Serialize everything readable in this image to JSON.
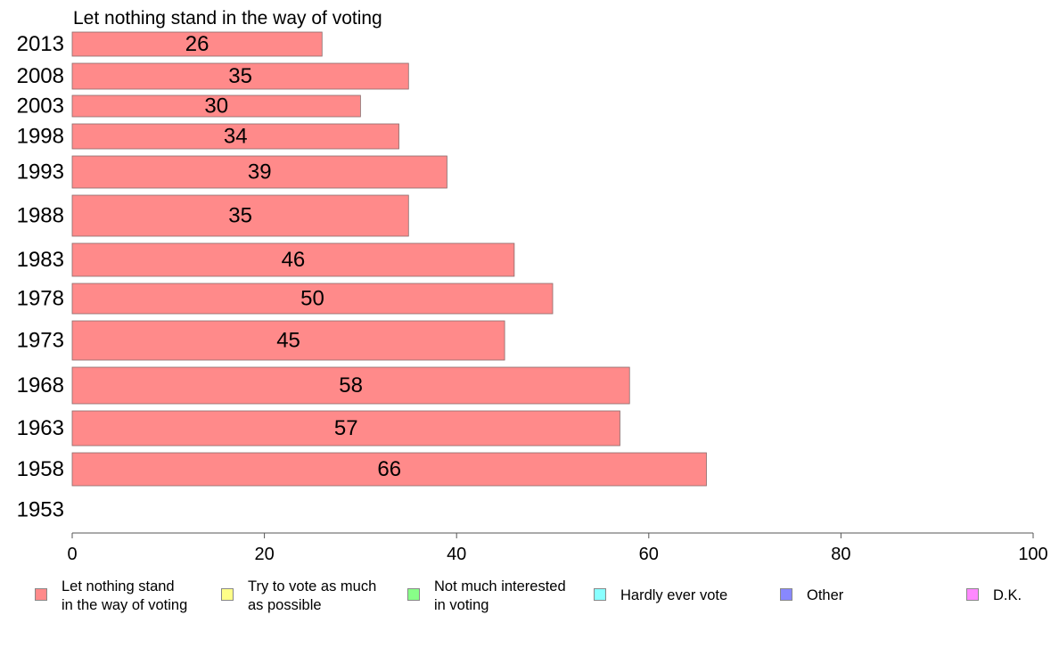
{
  "chart_data": {
    "type": "bar",
    "orientation": "horizontal",
    "title": "Let nothing stand in the way of voting",
    "categories": [
      "2013",
      "2008",
      "2003",
      "1998",
      "1993",
      "1988",
      "1983",
      "1978",
      "1973",
      "1968",
      "1963",
      "1958",
      "1953"
    ],
    "series": [
      {
        "name": "Let nothing stand in the way of voting",
        "values": [
          26,
          35,
          30,
          34,
          39,
          35,
          46,
          50,
          45,
          58,
          57,
          66,
          null
        ],
        "color": "#ff8a8a"
      }
    ],
    "x_ticks": [
      "0",
      "20",
      "40",
      "60",
      "80",
      "100"
    ],
    "xlim": [
      0,
      100
    ],
    "grid": false,
    "legend": {
      "placement": "bottom",
      "items": [
        {
          "label": "Let nothing stand\nin the way of voting",
          "color": "#ff8a8a"
        },
        {
          "label": "Try to vote as much\nas possible",
          "color": "#ffff88"
        },
        {
          "label": "Not much interested\nin voting",
          "color": "#88ff88"
        },
        {
          "label": "Hardly ever vote",
          "color": "#88ffff"
        },
        {
          "label": "Other",
          "color": "#8888ff"
        },
        {
          "label": "D.K.",
          "color": "#ff88ff"
        }
      ]
    }
  }
}
